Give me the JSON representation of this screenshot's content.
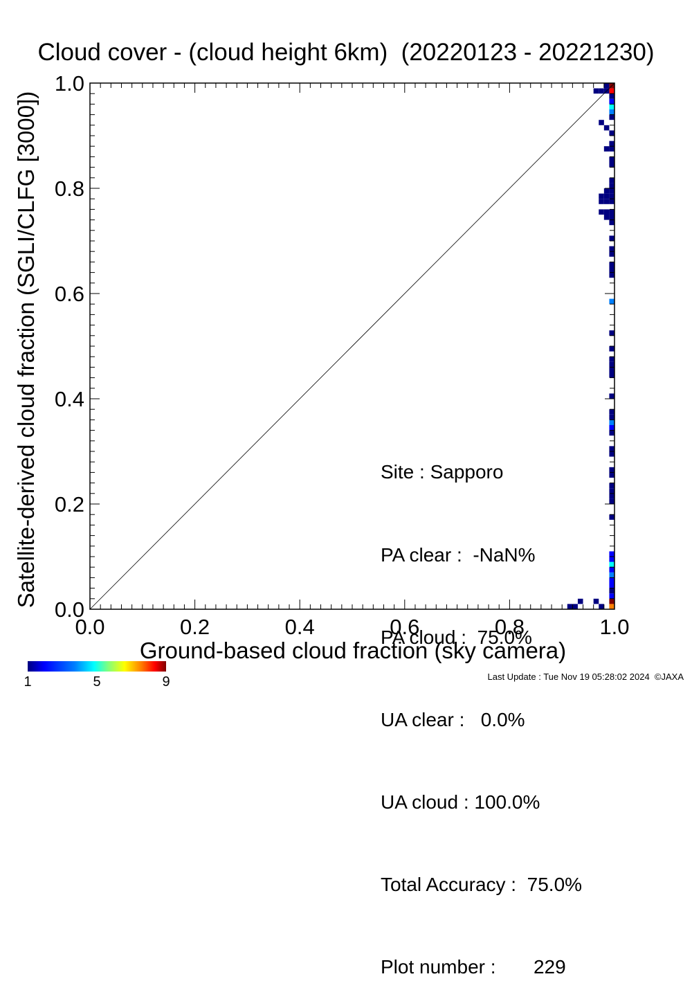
{
  "chart_data": {
    "type": "heatmap",
    "title": "Cloud cover - (cloud height 6km)  (20220123 - 20221230)",
    "xlabel": "Ground-based cloud fraction (sky camera)",
    "ylabel": "Satellite-derived cloud fraction (SGLI/CLFG [3000])",
    "xlim": [
      0.0,
      1.0
    ],
    "ylim": [
      0.0,
      1.0
    ],
    "x_tick_labels": [
      "0.0",
      "0.2",
      "0.4",
      "0.6",
      "0.8",
      "1.0"
    ],
    "y_tick_labels": [
      "0.0",
      "0.2",
      "0.4",
      "0.6",
      "0.8",
      "1.0"
    ],
    "reference_line": "1:1 diagonal",
    "grid": false,
    "colorbar": {
      "min": 1,
      "max": 9,
      "tick_labels": [
        "1",
        "5",
        "9"
      ]
    },
    "cells": [
      {
        "x": 0.915,
        "y": 0.005,
        "count": 1
      },
      {
        "x": 0.925,
        "y": 0.005,
        "count": 1
      },
      {
        "x": 0.935,
        "y": 0.015,
        "count": 1
      },
      {
        "x": 0.965,
        "y": 0.015,
        "count": 1
      },
      {
        "x": 0.975,
        "y": 0.005,
        "count": 1
      },
      {
        "x": 0.995,
        "y": 0.005,
        "count": 7
      },
      {
        "x": 0.995,
        "y": 0.015,
        "count": 9
      },
      {
        "x": 0.995,
        "y": 0.025,
        "count": 2
      },
      {
        "x": 0.995,
        "y": 0.035,
        "count": 1
      },
      {
        "x": 0.995,
        "y": 0.045,
        "count": 2
      },
      {
        "x": 0.995,
        "y": 0.055,
        "count": 2
      },
      {
        "x": 0.995,
        "y": 0.065,
        "count": 3
      },
      {
        "x": 0.995,
        "y": 0.075,
        "count": 2
      },
      {
        "x": 0.995,
        "y": 0.085,
        "count": 4
      },
      {
        "x": 0.995,
        "y": 0.095,
        "count": 2
      },
      {
        "x": 0.995,
        "y": 0.105,
        "count": 2
      },
      {
        "x": 0.995,
        "y": 0.175,
        "count": 1
      },
      {
        "x": 0.995,
        "y": 0.205,
        "count": 1
      },
      {
        "x": 0.995,
        "y": 0.215,
        "count": 1
      },
      {
        "x": 0.995,
        "y": 0.225,
        "count": 1
      },
      {
        "x": 0.995,
        "y": 0.235,
        "count": 1
      },
      {
        "x": 0.995,
        "y": 0.255,
        "count": 1
      },
      {
        "x": 0.995,
        "y": 0.265,
        "count": 1
      },
      {
        "x": 0.995,
        "y": 0.295,
        "count": 1
      },
      {
        "x": 0.995,
        "y": 0.305,
        "count": 1
      },
      {
        "x": 0.995,
        "y": 0.335,
        "count": 1
      },
      {
        "x": 0.995,
        "y": 0.365,
        "count": 1
      },
      {
        "x": 0.995,
        "y": 0.375,
        "count": 1
      },
      {
        "x": 0.995,
        "y": 0.355,
        "count": 3
      },
      {
        "x": 0.995,
        "y": 0.345,
        "count": 2
      },
      {
        "x": 0.995,
        "y": 0.405,
        "count": 1
      },
      {
        "x": 0.995,
        "y": 0.445,
        "count": 1
      },
      {
        "x": 0.995,
        "y": 0.455,
        "count": 1
      },
      {
        "x": 0.995,
        "y": 0.465,
        "count": 1
      },
      {
        "x": 0.995,
        "y": 0.475,
        "count": 1
      },
      {
        "x": 0.995,
        "y": 0.495,
        "count": 1
      },
      {
        "x": 0.995,
        "y": 0.525,
        "count": 1
      },
      {
        "x": 0.995,
        "y": 0.585,
        "count": 3
      },
      {
        "x": 0.995,
        "y": 0.635,
        "count": 1
      },
      {
        "x": 0.995,
        "y": 0.645,
        "count": 1
      },
      {
        "x": 0.995,
        "y": 0.655,
        "count": 1
      },
      {
        "x": 0.995,
        "y": 0.675,
        "count": 1
      },
      {
        "x": 0.995,
        "y": 0.685,
        "count": 1
      },
      {
        "x": 0.995,
        "y": 0.705,
        "count": 1
      },
      {
        "x": 0.995,
        "y": 0.735,
        "count": 1
      },
      {
        "x": 0.995,
        "y": 0.745,
        "count": 1
      },
      {
        "x": 0.995,
        "y": 0.755,
        "count": 1
      },
      {
        "x": 0.995,
        "y": 0.775,
        "count": 1
      },
      {
        "x": 0.995,
        "y": 0.785,
        "count": 1
      },
      {
        "x": 0.995,
        "y": 0.795,
        "count": 1
      },
      {
        "x": 0.995,
        "y": 0.805,
        "count": 1
      },
      {
        "x": 0.995,
        "y": 0.815,
        "count": 1
      },
      {
        "x": 0.995,
        "y": 0.845,
        "count": 1
      },
      {
        "x": 0.995,
        "y": 0.855,
        "count": 1
      },
      {
        "x": 0.995,
        "y": 0.875,
        "count": 1
      },
      {
        "x": 0.995,
        "y": 0.885,
        "count": 1
      },
      {
        "x": 0.995,
        "y": 0.905,
        "count": 1
      },
      {
        "x": 0.995,
        "y": 0.935,
        "count": 1
      },
      {
        "x": 0.995,
        "y": 0.945,
        "count": 3
      },
      {
        "x": 0.995,
        "y": 0.955,
        "count": 4
      },
      {
        "x": 0.995,
        "y": 0.965,
        "count": 2
      },
      {
        "x": 0.995,
        "y": 0.975,
        "count": 1
      },
      {
        "x": 0.995,
        "y": 0.985,
        "count": 8
      },
      {
        "x": 0.995,
        "y": 0.995,
        "count": 9
      },
      {
        "x": 0.985,
        "y": 0.995,
        "count": 1
      },
      {
        "x": 0.985,
        "y": 0.985,
        "count": 1
      },
      {
        "x": 0.975,
        "y": 0.985,
        "count": 1
      },
      {
        "x": 0.965,
        "y": 0.985,
        "count": 1
      },
      {
        "x": 0.985,
        "y": 0.915,
        "count": 1
      },
      {
        "x": 0.985,
        "y": 0.875,
        "count": 1
      },
      {
        "x": 0.985,
        "y": 0.795,
        "count": 1
      },
      {
        "x": 0.985,
        "y": 0.785,
        "count": 1
      },
      {
        "x": 0.985,
        "y": 0.775,
        "count": 1
      },
      {
        "x": 0.985,
        "y": 0.755,
        "count": 1
      },
      {
        "x": 0.985,
        "y": 0.745,
        "count": 1
      },
      {
        "x": 0.975,
        "y": 0.785,
        "count": 1
      },
      {
        "x": 0.975,
        "y": 0.775,
        "count": 1
      },
      {
        "x": 0.975,
        "y": 0.755,
        "count": 1
      },
      {
        "x": 0.975,
        "y": 0.925,
        "count": 1
      }
    ]
  },
  "stats": {
    "site": "Site : Sapporo",
    "pa_clear": "PA clear :  -NaN%",
    "pa_cloud": "PA cloud :  75.0%",
    "ua_clear": "UA clear :   0.0%",
    "ua_cloud": "UA cloud : 100.0%",
    "total_accuracy": "Total Accuracy :  75.0%",
    "plot_number": "Plot number :       229"
  },
  "colorbar": {
    "min_label": "1",
    "mid_label": "5",
    "max_label": "9"
  },
  "footer": {
    "last_update": "Last Update : Tue Nov 19 05:28:02 2024  ©JAXA"
  }
}
